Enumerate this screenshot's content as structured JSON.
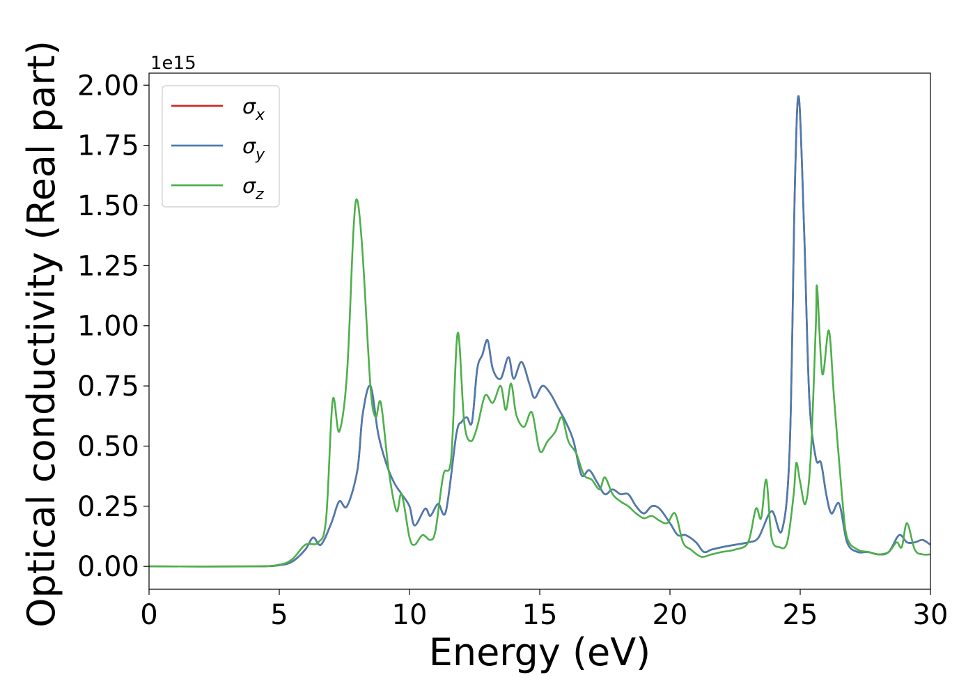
{
  "chart_data": {
    "type": "line",
    "xlabel": "Energy (eV)",
    "ylabel": "Optical conductivity (Real part)",
    "y_offset_label": "1e15",
    "y_scale_factor": 1000000000000000.0,
    "xlim": [
      0,
      30
    ],
    "ylim": [
      -0.095,
      2.05
    ],
    "grid": false,
    "legend_position": "top-left",
    "x_ticks": [
      0,
      5,
      10,
      15,
      20,
      25,
      30
    ],
    "x_tick_labels": [
      "0",
      "5",
      "10",
      "15",
      "20",
      "25",
      "30"
    ],
    "y_ticks": [
      0,
      0.25,
      0.5,
      0.75,
      1.0,
      1.25,
      1.5,
      1.75,
      2.0
    ],
    "y_tick_labels": [
      "0.00",
      "0.25",
      "0.50",
      "0.75",
      "1.00",
      "1.25",
      "1.50",
      "1.75",
      "2.00"
    ],
    "series": [
      {
        "name": "σ",
        "subscript": "x",
        "color": "#d62728",
        "points": [
          [
            0,
            0
          ],
          [
            4,
            0
          ],
          [
            5,
            0.005
          ],
          [
            5.5,
            0.02
          ],
          [
            6.0,
            0.07
          ],
          [
            6.3,
            0.12
          ],
          [
            6.6,
            0.09
          ],
          [
            7.0,
            0.18
          ],
          [
            7.3,
            0.27
          ],
          [
            7.6,
            0.25
          ],
          [
            8.0,
            0.4
          ],
          [
            8.2,
            0.63
          ],
          [
            8.5,
            0.75
          ],
          [
            8.8,
            0.55
          ],
          [
            9.1,
            0.43
          ],
          [
            9.4,
            0.35
          ],
          [
            9.7,
            0.3
          ],
          [
            10.0,
            0.25
          ],
          [
            10.2,
            0.17
          ],
          [
            10.6,
            0.24
          ],
          [
            10.8,
            0.21
          ],
          [
            11.1,
            0.26
          ],
          [
            11.4,
            0.23
          ],
          [
            11.8,
            0.55
          ],
          [
            12.0,
            0.6
          ],
          [
            12.2,
            0.62
          ],
          [
            12.4,
            0.6
          ],
          [
            12.6,
            0.82
          ],
          [
            12.8,
            0.88
          ],
          [
            13.0,
            0.94
          ],
          [
            13.2,
            0.82
          ],
          [
            13.5,
            0.78
          ],
          [
            13.8,
            0.87
          ],
          [
            14.0,
            0.78
          ],
          [
            14.3,
            0.85
          ],
          [
            14.6,
            0.76
          ],
          [
            14.8,
            0.7
          ],
          [
            15.1,
            0.75
          ],
          [
            15.4,
            0.72
          ],
          [
            15.7,
            0.66
          ],
          [
            16.0,
            0.6
          ],
          [
            16.3,
            0.52
          ],
          [
            16.6,
            0.38
          ],
          [
            16.9,
            0.4
          ],
          [
            17.2,
            0.35
          ],
          [
            17.5,
            0.3
          ],
          [
            17.8,
            0.32
          ],
          [
            18.1,
            0.3
          ],
          [
            18.4,
            0.3
          ],
          [
            18.7,
            0.25
          ],
          [
            19.0,
            0.22
          ],
          [
            19.3,
            0.25
          ],
          [
            19.6,
            0.24
          ],
          [
            20.0,
            0.18
          ],
          [
            20.3,
            0.13
          ],
          [
            20.6,
            0.13
          ],
          [
            21.0,
            0.1
          ],
          [
            21.3,
            0.06
          ],
          [
            21.6,
            0.07
          ],
          [
            22.0,
            0.08
          ],
          [
            22.5,
            0.09
          ],
          [
            23.0,
            0.1
          ],
          [
            23.4,
            0.12
          ],
          [
            23.9,
            0.23
          ],
          [
            24.3,
            0.15
          ],
          [
            24.6,
            0.5
          ],
          [
            24.8,
            1.6
          ],
          [
            24.95,
            1.95
          ],
          [
            25.15,
            1.4
          ],
          [
            25.35,
            0.7
          ],
          [
            25.6,
            0.45
          ],
          [
            25.8,
            0.43
          ],
          [
            26.0,
            0.3
          ],
          [
            26.2,
            0.22
          ],
          [
            26.5,
            0.26
          ],
          [
            26.8,
            0.1
          ],
          [
            27.2,
            0.06
          ],
          [
            27.6,
            0.06
          ],
          [
            28.0,
            0.05
          ],
          [
            28.4,
            0.06
          ],
          [
            28.8,
            0.13
          ],
          [
            29.1,
            0.1
          ],
          [
            29.4,
            0.1
          ],
          [
            29.7,
            0.11
          ],
          [
            30.0,
            0.09
          ]
        ]
      },
      {
        "name": "σ",
        "subscript": "y",
        "color": "#4a7bb0",
        "points": [
          [
            0,
            0
          ],
          [
            4,
            0
          ],
          [
            5,
            0.005
          ],
          [
            5.5,
            0.02
          ],
          [
            6.0,
            0.07
          ],
          [
            6.3,
            0.12
          ],
          [
            6.6,
            0.09
          ],
          [
            7.0,
            0.18
          ],
          [
            7.3,
            0.27
          ],
          [
            7.6,
            0.25
          ],
          [
            8.0,
            0.4
          ],
          [
            8.2,
            0.63
          ],
          [
            8.5,
            0.75
          ],
          [
            8.8,
            0.55
          ],
          [
            9.1,
            0.43
          ],
          [
            9.4,
            0.35
          ],
          [
            9.7,
            0.3
          ],
          [
            10.0,
            0.25
          ],
          [
            10.2,
            0.17
          ],
          [
            10.6,
            0.24
          ],
          [
            10.8,
            0.21
          ],
          [
            11.1,
            0.26
          ],
          [
            11.4,
            0.23
          ],
          [
            11.8,
            0.55
          ],
          [
            12.0,
            0.6
          ],
          [
            12.2,
            0.62
          ],
          [
            12.4,
            0.6
          ],
          [
            12.6,
            0.82
          ],
          [
            12.8,
            0.88
          ],
          [
            13.0,
            0.94
          ],
          [
            13.2,
            0.82
          ],
          [
            13.5,
            0.78
          ],
          [
            13.8,
            0.87
          ],
          [
            14.0,
            0.78
          ],
          [
            14.3,
            0.85
          ],
          [
            14.6,
            0.76
          ],
          [
            14.8,
            0.7
          ],
          [
            15.1,
            0.75
          ],
          [
            15.4,
            0.72
          ],
          [
            15.7,
            0.66
          ],
          [
            16.0,
            0.6
          ],
          [
            16.3,
            0.52
          ],
          [
            16.6,
            0.38
          ],
          [
            16.9,
            0.4
          ],
          [
            17.2,
            0.35
          ],
          [
            17.5,
            0.3
          ],
          [
            17.8,
            0.32
          ],
          [
            18.1,
            0.3
          ],
          [
            18.4,
            0.3
          ],
          [
            18.7,
            0.25
          ],
          [
            19.0,
            0.22
          ],
          [
            19.3,
            0.25
          ],
          [
            19.6,
            0.24
          ],
          [
            20.0,
            0.18
          ],
          [
            20.3,
            0.13
          ],
          [
            20.6,
            0.13
          ],
          [
            21.0,
            0.1
          ],
          [
            21.3,
            0.06
          ],
          [
            21.6,
            0.07
          ],
          [
            22.0,
            0.08
          ],
          [
            22.5,
            0.09
          ],
          [
            23.0,
            0.1
          ],
          [
            23.4,
            0.12
          ],
          [
            23.9,
            0.23
          ],
          [
            24.3,
            0.15
          ],
          [
            24.6,
            0.5
          ],
          [
            24.8,
            1.6
          ],
          [
            24.95,
            1.95
          ],
          [
            25.15,
            1.4
          ],
          [
            25.35,
            0.7
          ],
          [
            25.6,
            0.45
          ],
          [
            25.8,
            0.43
          ],
          [
            26.0,
            0.3
          ],
          [
            26.2,
            0.22
          ],
          [
            26.5,
            0.26
          ],
          [
            26.8,
            0.1
          ],
          [
            27.2,
            0.06
          ],
          [
            27.6,
            0.06
          ],
          [
            28.0,
            0.05
          ],
          [
            28.4,
            0.06
          ],
          [
            28.8,
            0.13
          ],
          [
            29.1,
            0.1
          ],
          [
            29.4,
            0.1
          ],
          [
            29.7,
            0.11
          ],
          [
            30.0,
            0.09
          ]
        ]
      },
      {
        "name": "σ",
        "subscript": "z",
        "color": "#4daf4a",
        "points": [
          [
            0,
            0
          ],
          [
            4,
            0
          ],
          [
            5,
            0.007
          ],
          [
            5.5,
            0.03
          ],
          [
            6.0,
            0.09
          ],
          [
            6.5,
            0.1
          ],
          [
            6.8,
            0.2
          ],
          [
            7.05,
            0.69
          ],
          [
            7.3,
            0.56
          ],
          [
            7.6,
            0.8
          ],
          [
            7.85,
            1.4
          ],
          [
            8.0,
            1.52
          ],
          [
            8.2,
            1.3
          ],
          [
            8.5,
            0.75
          ],
          [
            8.7,
            0.62
          ],
          [
            8.9,
            0.68
          ],
          [
            9.2,
            0.4
          ],
          [
            9.5,
            0.23
          ],
          [
            9.7,
            0.3
          ],
          [
            10.0,
            0.12
          ],
          [
            10.2,
            0.09
          ],
          [
            10.5,
            0.13
          ],
          [
            10.8,
            0.11
          ],
          [
            11.0,
            0.15
          ],
          [
            11.3,
            0.38
          ],
          [
            11.6,
            0.45
          ],
          [
            11.85,
            0.97
          ],
          [
            12.1,
            0.6
          ],
          [
            12.35,
            0.52
          ],
          [
            12.6,
            0.58
          ],
          [
            12.9,
            0.71
          ],
          [
            13.2,
            0.68
          ],
          [
            13.5,
            0.75
          ],
          [
            13.7,
            0.65
          ],
          [
            13.9,
            0.76
          ],
          [
            14.1,
            0.63
          ],
          [
            14.4,
            0.58
          ],
          [
            14.7,
            0.64
          ],
          [
            15.0,
            0.48
          ],
          [
            15.3,
            0.52
          ],
          [
            15.6,
            0.56
          ],
          [
            15.85,
            0.62
          ],
          [
            16.1,
            0.52
          ],
          [
            16.4,
            0.47
          ],
          [
            16.7,
            0.38
          ],
          [
            17.0,
            0.36
          ],
          [
            17.3,
            0.32
          ],
          [
            17.5,
            0.37
          ],
          [
            17.8,
            0.3
          ],
          [
            18.1,
            0.27
          ],
          [
            18.4,
            0.25
          ],
          [
            18.7,
            0.22
          ],
          [
            19.0,
            0.2
          ],
          [
            19.3,
            0.21
          ],
          [
            19.6,
            0.19
          ],
          [
            19.9,
            0.18
          ],
          [
            20.2,
            0.22
          ],
          [
            20.5,
            0.1
          ],
          [
            20.8,
            0.07
          ],
          [
            21.2,
            0.04
          ],
          [
            21.6,
            0.05
          ],
          [
            22.0,
            0.06
          ],
          [
            22.5,
            0.07
          ],
          [
            23.0,
            0.1
          ],
          [
            23.3,
            0.24
          ],
          [
            23.5,
            0.2
          ],
          [
            23.7,
            0.36
          ],
          [
            23.9,
            0.12
          ],
          [
            24.2,
            0.08
          ],
          [
            24.5,
            0.1
          ],
          [
            24.75,
            0.3
          ],
          [
            24.85,
            0.43
          ],
          [
            25.0,
            0.35
          ],
          [
            25.2,
            0.26
          ],
          [
            25.4,
            0.45
          ],
          [
            25.6,
            1.0
          ],
          [
            25.65,
            1.16
          ],
          [
            25.85,
            0.8
          ],
          [
            26.1,
            0.98
          ],
          [
            26.3,
            0.7
          ],
          [
            26.6,
            0.3
          ],
          [
            26.8,
            0.12
          ],
          [
            27.2,
            0.07
          ],
          [
            27.6,
            0.06
          ],
          [
            28.0,
            0.05
          ],
          [
            28.4,
            0.06
          ],
          [
            28.7,
            0.1
          ],
          [
            28.9,
            0.08
          ],
          [
            29.1,
            0.18
          ],
          [
            29.4,
            0.07
          ],
          [
            29.7,
            0.05
          ],
          [
            30.0,
            0.05
          ]
        ]
      }
    ]
  }
}
